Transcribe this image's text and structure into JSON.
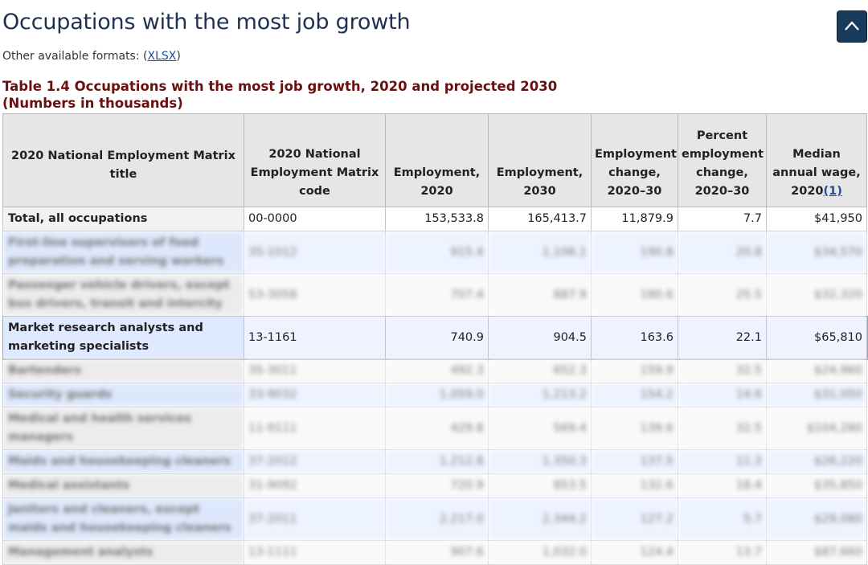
{
  "page": {
    "title": "Occupations with the most job growth",
    "formats_prefix": "Other available formats: (",
    "formats_link": "XLSX",
    "formats_suffix": ")"
  },
  "table": {
    "caption_line1": "Table 1.4 Occupations with the most job growth, 2020 and projected 2030",
    "caption_line2": "(Numbers in thousands)",
    "headers": {
      "title": "2020 National Employment Matrix title",
      "code": "2020 National Employment Matrix code",
      "emp2020": "Employment, 2020",
      "emp2030": "Employment, 2030",
      "change": "Employment change, 2020–30",
      "pct": "Percent employment change, 2020–30",
      "wage": "Median annual wage, 2020",
      "wage_note": "(1)"
    },
    "rows": [
      {
        "title": "Total, all occupations",
        "code": "00-0000",
        "emp2020": "153,533.8",
        "emp2030": "165,413.7",
        "change": "11,879.9",
        "pct": "7.7",
        "wage": "$41,950"
      },
      {
        "title": "First-line supervisors of food preparation and serving workers",
        "code": "35-1012",
        "emp2020": "915.4",
        "emp2030": "1,106.1",
        "change": "190.8",
        "pct": "20.8",
        "wage": "$34,570"
      },
      {
        "title": "Passenger vehicle drivers, except bus drivers, transit and intercity",
        "code": "53-3058",
        "emp2020": "707.4",
        "emp2030": "887.9",
        "change": "180.6",
        "pct": "25.5",
        "wage": "$32,320"
      },
      {
        "title": "Market research analysts and marketing specialists",
        "code": "13-1161",
        "emp2020": "740.9",
        "emp2030": "904.5",
        "change": "163.6",
        "pct": "22.1",
        "wage": "$65,810"
      },
      {
        "title": "Bartenders",
        "code": "35-3011",
        "emp2020": "492.3",
        "emp2030": "652.3",
        "change": "159.9",
        "pct": "32.5",
        "wage": "$24,960"
      },
      {
        "title": "Security guards",
        "code": "33-9032",
        "emp2020": "1,059.0",
        "emp2030": "1,213.2",
        "change": "154.2",
        "pct": "14.6",
        "wage": "$31,050"
      },
      {
        "title": "Medical and health services managers",
        "code": "11-9111",
        "emp2020": "429.8",
        "emp2030": "569.4",
        "change": "139.6",
        "pct": "32.5",
        "wage": "$104,280"
      },
      {
        "title": "Maids and housekeeping cleaners",
        "code": "37-2012",
        "emp2020": "1,212.8",
        "emp2030": "1,350.3",
        "change": "137.5",
        "pct": "11.3",
        "wage": "$26,220"
      },
      {
        "title": "Medical assistants",
        "code": "31-9092",
        "emp2020": "720.9",
        "emp2030": "853.5",
        "change": "132.6",
        "pct": "18.4",
        "wage": "$35,850"
      },
      {
        "title": "Janitors and cleaners, except maids and housekeeping cleaners",
        "code": "37-2011",
        "emp2020": "2,217.0",
        "emp2030": "2,344.2",
        "change": "127.2",
        "pct": "5.7",
        "wage": "$29,080"
      },
      {
        "title": "Management analysts",
        "code": "13-1111",
        "emp2020": "907.6",
        "emp2030": "1,032.0",
        "change": "124.4",
        "pct": "13.7",
        "wage": "$87,660"
      }
    ]
  },
  "icons": {
    "back_to_top": "chevron-up-icon"
  },
  "colors": {
    "caption": "#6b0f0f",
    "link": "#1d4ea0",
    "back_to_top_bg": "#183a5b"
  }
}
